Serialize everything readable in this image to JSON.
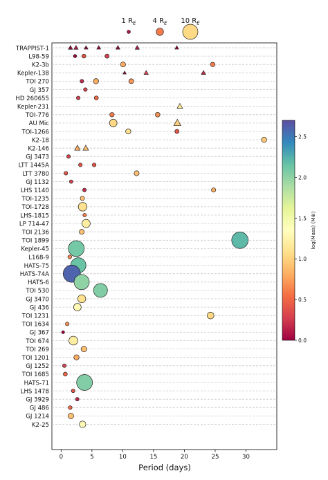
{
  "chart_data": {
    "type": "scatter",
    "xlabel": "Period (days)",
    "xlim": [
      -1.5,
      35
    ],
    "xticks": [
      0,
      5,
      10,
      15,
      20,
      25,
      30
    ],
    "grid_horizontal_dashed": true,
    "colorbar": {
      "label": "log(Mass) (M⊕)",
      "min": 0.0,
      "max": 2.7,
      "ticks": [
        "0.0",
        "0.5",
        "1.0",
        "1.5",
        "2.0",
        "2.5"
      ],
      "colormap": "Spectral"
    },
    "size_legend": [
      {
        "label": "1 R",
        "sub": "E",
        "radius": 1,
        "log_mass": 0.1
      },
      {
        "label": "4 R",
        "sub": "E",
        "radius": 4,
        "log_mass": 0.6
      },
      {
        "label": "10 R",
        "sub": "E",
        "radius": 10,
        "log_mass": 1.05
      }
    ],
    "systems": [
      {
        "name": "TRAPPIST-1",
        "planets": [
          {
            "p": 1.51,
            "r": 1.1,
            "m": 0.0,
            "s": "tri"
          },
          {
            "p": 2.42,
            "r": 1.1,
            "m": 0.1,
            "s": "tri"
          },
          {
            "p": 4.05,
            "r": 0.8,
            "m": -0.4,
            "s": "tri"
          },
          {
            "p": 6.1,
            "r": 0.9,
            "m": -0.1,
            "s": "tri"
          },
          {
            "p": 9.21,
            "r": 1.0,
            "m": 0.0,
            "s": "tri"
          },
          {
            "p": 12.35,
            "r": 1.1,
            "m": 0.1,
            "s": "tri"
          },
          {
            "p": 18.77,
            "r": 0.8,
            "m": -0.5,
            "s": "tri"
          }
        ]
      },
      {
        "name": "L98-59",
        "planets": [
          {
            "p": 2.25,
            "r": 0.9,
            "m": -0.4,
            "s": "circle"
          },
          {
            "p": 3.69,
            "r": 1.4,
            "m": 0.4,
            "s": "circle"
          },
          {
            "p": 7.45,
            "r": 1.6,
            "m": 0.3,
            "s": "circle"
          }
        ]
      },
      {
        "name": "K2-3b",
        "planets": [
          {
            "p": 10.05,
            "r": 2.2,
            "m": 0.8,
            "s": "circle"
          },
          {
            "p": 24.6,
            "r": 1.8,
            "m": 0.6,
            "s": "circle"
          }
        ]
      },
      {
        "name": "Kepler-138",
        "planets": [
          {
            "p": 10.3,
            "r": 0.5,
            "m": -1.0,
            "s": "tri"
          },
          {
            "p": 13.8,
            "r": 1.2,
            "m": 0.3,
            "s": "tri"
          },
          {
            "p": 23.1,
            "r": 1.2,
            "m": 0.2,
            "s": "tri"
          }
        ]
      },
      {
        "name": "TOI 270",
        "planets": [
          {
            "p": 3.36,
            "r": 1.2,
            "m": 0.2,
            "s": "circle"
          },
          {
            "p": 5.66,
            "r": 2.4,
            "m": 0.8,
            "s": "circle"
          },
          {
            "p": 11.38,
            "r": 2.1,
            "m": 0.7,
            "s": "circle"
          }
        ]
      },
      {
        "name": "GJ 357",
        "planets": [
          {
            "p": 3.93,
            "r": 1.2,
            "m": 0.3,
            "s": "circle"
          }
        ]
      },
      {
        "name": "HD 260655",
        "planets": [
          {
            "p": 2.77,
            "r": 1.2,
            "m": 0.3,
            "s": "circle"
          },
          {
            "p": 5.71,
            "r": 1.5,
            "m": 0.5,
            "s": "circle"
          }
        ]
      },
      {
        "name": "Kepler-231",
        "planets": [
          {
            "p": 19.27,
            "r": 1.9,
            "m": 1.15,
            "s": "tri"
          }
        ]
      },
      {
        "name": "TOI-776",
        "planets": [
          {
            "p": 8.25,
            "r": 1.8,
            "m": 0.6,
            "s": "circle"
          },
          {
            "p": 15.66,
            "r": 2.0,
            "m": 0.7,
            "s": "circle"
          }
        ]
      },
      {
        "name": "AU Mic",
        "planets": [
          {
            "p": 8.46,
            "r": 4.2,
            "m": 1.05,
            "s": "circle"
          },
          {
            "p": 18.86,
            "r": 3.0,
            "m": 1.0,
            "s": "tri"
          }
        ]
      },
      {
        "name": "TOI-1266",
        "planets": [
          {
            "p": 10.89,
            "r": 2.4,
            "m": 1.1,
            "s": "circle"
          },
          {
            "p": 18.8,
            "r": 1.6,
            "m": 0.4,
            "s": "circle"
          }
        ]
      },
      {
        "name": "K2-18",
        "planets": [
          {
            "p": 32.94,
            "r": 2.4,
            "m": 0.95,
            "s": "circle"
          }
        ]
      },
      {
        "name": "K2-146",
        "planets": [
          {
            "p": 2.64,
            "r": 2.0,
            "m": 0.8,
            "s": "tri"
          },
          {
            "p": 4.0,
            "r": 2.0,
            "m": 0.9,
            "s": "tri"
          }
        ]
      },
      {
        "name": "GJ 3473",
        "planets": [
          {
            "p": 1.2,
            "r": 1.2,
            "m": 0.3,
            "s": "circle"
          }
        ]
      },
      {
        "name": "LTT 1445A",
        "planets": [
          {
            "p": 3.12,
            "r": 1.2,
            "m": 0.4,
            "s": "circle"
          },
          {
            "p": 5.36,
            "r": 1.3,
            "m": 0.4,
            "s": "circle"
          }
        ]
      },
      {
        "name": "LTT 3780",
        "planets": [
          {
            "p": 0.77,
            "r": 1.2,
            "m": 0.4,
            "s": "circle"
          },
          {
            "p": 12.25,
            "r": 2.2,
            "m": 0.9,
            "s": "circle"
          }
        ]
      },
      {
        "name": "GJ 1132",
        "planets": [
          {
            "p": 1.63,
            "r": 1.1,
            "m": 0.3,
            "s": "circle"
          }
        ]
      },
      {
        "name": "LHS 1140",
        "planets": [
          {
            "p": 3.78,
            "r": 1.2,
            "m": 0.2,
            "s": "circle"
          },
          {
            "p": 24.74,
            "r": 1.7,
            "m": 0.8,
            "s": "circle"
          }
        ]
      },
      {
        "name": "TOI-1235",
        "planets": [
          {
            "p": 3.44,
            "r": 1.7,
            "m": 0.9,
            "s": "circle"
          }
        ]
      },
      {
        "name": "TOI-1728",
        "planets": [
          {
            "p": 3.49,
            "r": 5.0,
            "m": 1.1,
            "s": "circle"
          }
        ]
      },
      {
        "name": "LHS-1815",
        "planets": [
          {
            "p": 3.81,
            "r": 1.1,
            "m": 0.6,
            "s": "circle"
          }
        ]
      },
      {
        "name": "LP 714-47",
        "planets": [
          {
            "p": 4.05,
            "r": 4.7,
            "m": 1.2,
            "s": "circle"
          }
        ]
      },
      {
        "name": "TOI 2136",
        "planets": [
          {
            "p": 3.34,
            "r": 2.2,
            "m": 0.9,
            "s": "circle"
          }
        ]
      },
      {
        "name": "TOI 1899",
        "planets": [
          {
            "p": 29.02,
            "r": 11.0,
            "m": 2.2,
            "s": "circle"
          }
        ]
      },
      {
        "name": "Kepler-45",
        "planets": [
          {
            "p": 2.46,
            "r": 10.5,
            "m": 2.1,
            "s": "circle"
          }
        ]
      },
      {
        "name": "L168-9",
        "planets": [
          {
            "p": 1.4,
            "r": 1.3,
            "m": 0.65,
            "s": "circle"
          }
        ]
      },
      {
        "name": "HATS-75",
        "planets": [
          {
            "p": 2.79,
            "r": 10.0,
            "m": 2.15,
            "s": "circle"
          }
        ]
      },
      {
        "name": "HATS-74A",
        "planets": [
          {
            "p": 1.73,
            "r": 11.5,
            "m": 2.6,
            "s": "circle"
          }
        ]
      },
      {
        "name": "HATS-6",
        "planets": [
          {
            "p": 3.33,
            "r": 10.0,
            "m": 2.0,
            "s": "circle"
          }
        ]
      },
      {
        "name": "TOI 530",
        "planets": [
          {
            "p": 6.39,
            "r": 9.0,
            "m": 2.05,
            "s": "circle"
          }
        ]
      },
      {
        "name": "GJ 3470",
        "planets": [
          {
            "p": 3.34,
            "r": 4.5,
            "m": 1.1,
            "s": "circle"
          }
        ]
      },
      {
        "name": "GJ 436",
        "planets": [
          {
            "p": 2.64,
            "r": 4.2,
            "m": 1.3,
            "s": "circle"
          }
        ]
      },
      {
        "name": "TOI 1231",
        "planets": [
          {
            "p": 24.25,
            "r": 3.6,
            "m": 1.05,
            "s": "circle"
          }
        ]
      },
      {
        "name": "TOI 1634",
        "planets": [
          {
            "p": 0.99,
            "r": 1.2,
            "m": 0.7,
            "s": "circle"
          }
        ]
      },
      {
        "name": "GJ 367",
        "planets": [
          {
            "p": 0.32,
            "r": 0.7,
            "m": -0.2,
            "s": "circle"
          }
        ]
      },
      {
        "name": "TOI 674",
        "planets": [
          {
            "p": 1.98,
            "r": 5.2,
            "m": 1.2,
            "s": "circle"
          }
        ]
      },
      {
        "name": "TOI 269",
        "planets": [
          {
            "p": 3.7,
            "r": 2.7,
            "m": 0.9,
            "s": "circle"
          }
        ]
      },
      {
        "name": "TOI 1201",
        "planets": [
          {
            "p": 2.49,
            "r": 2.4,
            "m": 0.8,
            "s": "circle"
          }
        ]
      },
      {
        "name": "GJ 1252",
        "planets": [
          {
            "p": 0.52,
            "r": 1.2,
            "m": 0.3,
            "s": "circle"
          }
        ]
      },
      {
        "name": "TOI 1685",
        "planets": [
          {
            "p": 0.67,
            "r": 1.5,
            "m": 0.5,
            "s": "circle"
          }
        ]
      },
      {
        "name": "HATS-71",
        "planets": [
          {
            "p": 3.8,
            "r": 10.5,
            "m": 2.05,
            "s": "circle"
          }
        ]
      },
      {
        "name": "LHS 1478",
        "planets": [
          {
            "p": 1.95,
            "r": 1.2,
            "m": 0.4,
            "s": "circle"
          }
        ]
      },
      {
        "name": "GJ 3929",
        "planets": [
          {
            "p": 2.62,
            "r": 1.1,
            "m": 0.15,
            "s": "circle"
          }
        ]
      },
      {
        "name": "GJ 486",
        "planets": [
          {
            "p": 1.47,
            "r": 1.3,
            "m": 0.5,
            "s": "circle"
          }
        ]
      },
      {
        "name": "GJ 1214",
        "planets": [
          {
            "p": 1.58,
            "r": 2.7,
            "m": 0.9,
            "s": "circle"
          }
        ]
      },
      {
        "name": "K2-25",
        "planets": [
          {
            "p": 3.48,
            "r": 3.4,
            "m": 1.3,
            "s": "circle"
          }
        ]
      }
    ]
  }
}
